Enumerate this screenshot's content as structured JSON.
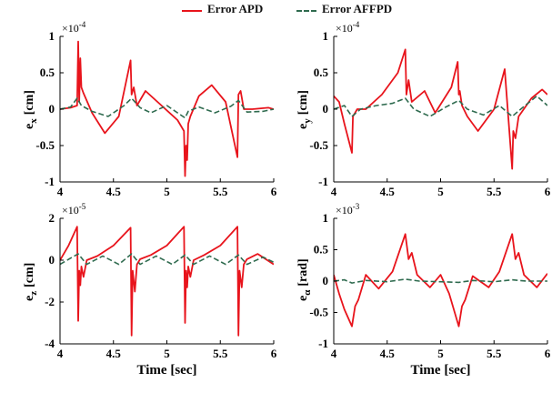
{
  "legend": {
    "apd_label": "Error APD",
    "affpd_label": "Error AFFPD"
  },
  "colors": {
    "apd": "#e8141c",
    "affpd": "#2f6b4f",
    "axis": "#000000"
  },
  "chart_data": [
    {
      "type": "line",
      "id": "ex",
      "ylabel": "e",
      "ylabel_sub": "x",
      "ylabel_unit": "[cm]",
      "exponent": "×10",
      "exponent_power": "-4",
      "xlabel": "",
      "xlim": [
        4,
        6
      ],
      "ylim": [
        -1,
        1
      ],
      "xticks": [
        4,
        4.5,
        5,
        5.5,
        6
      ],
      "xtick_labels": [
        "4",
        "4.5",
        "5",
        "5.5",
        "6"
      ],
      "yticks": [
        1,
        0.5,
        0,
        -0.5,
        -1
      ],
      "ytick_labels": [
        "1",
        "0.5",
        "0",
        "-0.5",
        "-1"
      ],
      "series": [
        {
          "name": "Error APD",
          "x": [
            4,
            4.1,
            4.16,
            4.17,
            4.18,
            4.19,
            4.2,
            4.22,
            4.3,
            4.42,
            4.55,
            4.66,
            4.67,
            4.69,
            4.72,
            4.8,
            4.95,
            5.1,
            5.16,
            5.17,
            5.18,
            5.19,
            5.2,
            5.22,
            5.3,
            5.42,
            5.55,
            5.66,
            5.67,
            5.69,
            5.72,
            5.8,
            5.95,
            6
          ],
          "y": [
            0,
            0.02,
            0.05,
            0.93,
            0.1,
            0.7,
            0.3,
            0.22,
            -0.05,
            -0.33,
            -0.1,
            0.67,
            0.2,
            0.3,
            0.05,
            0.25,
            0.05,
            -0.15,
            -0.3,
            -0.92,
            -0.5,
            -0.7,
            -0.2,
            -0.1,
            0.18,
            0.33,
            0.1,
            -0.66,
            0.2,
            0.25,
            0,
            0,
            0.02,
            0
          ]
        },
        {
          "name": "Error AFFPD",
          "x": [
            4,
            4.1,
            4.16,
            4.2,
            4.3,
            4.45,
            4.6,
            4.67,
            4.75,
            4.85,
            5,
            5.1,
            5.17,
            5.2,
            5.3,
            5.45,
            5.6,
            5.67,
            5.75,
            5.9,
            6
          ],
          "y": [
            0,
            0.03,
            0.15,
            0.05,
            -0.03,
            -0.1,
            0.05,
            0.15,
            0.02,
            -0.05,
            0.05,
            -0.05,
            -0.12,
            -0.03,
            0.03,
            -0.05,
            0.04,
            0.12,
            -0.04,
            -0.03,
            0
          ]
        }
      ]
    },
    {
      "type": "line",
      "id": "ey",
      "ylabel": "e",
      "ylabel_sub": "y",
      "ylabel_unit": "[cm]",
      "exponent": "×10",
      "exponent_power": "-4",
      "xlabel": "",
      "xlim": [
        4,
        6
      ],
      "ylim": [
        -1,
        1
      ],
      "xticks": [
        4,
        4.5,
        5,
        5.5,
        6
      ],
      "xtick_labels": [
        "4",
        "4.5",
        "5",
        "5.5",
        "6"
      ],
      "yticks": [
        1,
        0.5,
        0,
        -0.5,
        -1
      ],
      "ytick_labels": [
        "1",
        "0.5",
        "0",
        "-0.5",
        "-1"
      ],
      "series": [
        {
          "name": "Error APD",
          "x": [
            4,
            4.05,
            4.1,
            4.17,
            4.18,
            4.2,
            4.22,
            4.3,
            4.45,
            4.6,
            4.67,
            4.68,
            4.7,
            4.73,
            4.85,
            4.95,
            5.1,
            5.16,
            5.17,
            5.18,
            5.2,
            5.25,
            5.35,
            5.5,
            5.6,
            5.67,
            5.68,
            5.7,
            5.73,
            5.85,
            5.95,
            6
          ],
          "y": [
            0.18,
            0.1,
            -0.2,
            -0.6,
            -0.1,
            -0.05,
            0,
            0,
            0.2,
            0.5,
            0.82,
            0.2,
            0.4,
            0.1,
            0.25,
            -0.05,
            0.3,
            0.65,
            0.2,
            0.25,
            0.05,
            -0.1,
            -0.3,
            0,
            0.55,
            -0.82,
            -0.3,
            -0.4,
            -0.1,
            0.15,
            0.27,
            0.2
          ]
        },
        {
          "name": "Error AFFPD",
          "x": [
            4,
            4.1,
            4.17,
            4.25,
            4.4,
            4.55,
            4.67,
            4.75,
            4.9,
            5.05,
            5.17,
            5.25,
            5.4,
            5.55,
            5.67,
            5.75,
            5.9,
            6
          ],
          "y": [
            0,
            0.05,
            -0.1,
            0,
            0.05,
            0.08,
            0.15,
            0,
            -0.1,
            0.03,
            0.12,
            0,
            -0.08,
            0.05,
            -0.1,
            0,
            0.18,
            0.05
          ]
        }
      ]
    },
    {
      "type": "line",
      "id": "ez",
      "ylabel": "e",
      "ylabel_sub": "z",
      "ylabel_unit": "[cm]",
      "exponent": "×10",
      "exponent_power": "-5",
      "xlabel": "Time [sec]",
      "xlim": [
        4,
        6
      ],
      "ylim": [
        -4,
        2
      ],
      "xticks": [
        4,
        4.5,
        5,
        5.5,
        6
      ],
      "xtick_labels": [
        "4",
        "4.5",
        "5",
        "5.5",
        "6"
      ],
      "yticks": [
        2,
        0,
        -2,
        -4
      ],
      "ytick_labels": [
        "2",
        "0",
        "-2",
        "-4"
      ],
      "series": [
        {
          "name": "Error APD",
          "x": [
            4,
            4.08,
            4.16,
            4.17,
            4.18,
            4.19,
            4.2,
            4.22,
            4.25,
            4.35,
            4.5,
            4.66,
            4.67,
            4.68,
            4.7,
            4.72,
            4.75,
            4.85,
            5,
            5.16,
            5.17,
            5.18,
            5.19,
            5.2,
            5.22,
            5.25,
            5.35,
            5.5,
            5.66,
            5.67,
            5.68,
            5.7,
            5.72,
            5.75,
            5.85,
            6
          ],
          "y": [
            0,
            0.7,
            1.6,
            -2.9,
            -0.5,
            -1.2,
            -0.3,
            -0.8,
            0,
            0.2,
            0.7,
            1.55,
            -3.6,
            -0.5,
            -1.5,
            -0.2,
            0.05,
            0.25,
            0.7,
            1.6,
            -3.0,
            -0.5,
            -1.3,
            -0.3,
            -0.8,
            0,
            0.25,
            0.7,
            1.6,
            -3.6,
            -0.5,
            -1.3,
            -0.2,
            0.05,
            0.3,
            -0.2
          ]
        },
        {
          "name": "Error AFFPD",
          "x": [
            4,
            4.1,
            4.17,
            4.25,
            4.4,
            4.55,
            4.67,
            4.75,
            4.9,
            5.05,
            5.17,
            5.25,
            5.4,
            5.55,
            5.67,
            5.75,
            5.9,
            6
          ],
          "y": [
            -0.2,
            0.1,
            0.3,
            -0.2,
            0.2,
            -0.2,
            0.3,
            -0.2,
            0.2,
            -0.2,
            0.25,
            -0.2,
            0.2,
            -0.2,
            0.25,
            -0.2,
            0.15,
            -0.1
          ]
        }
      ]
    },
    {
      "type": "line",
      "id": "ealpha",
      "ylabel": "e",
      "ylabel_sub": "α",
      "ylabel_unit": "[rad]",
      "exponent": "×10",
      "exponent_power": "-3",
      "xlabel": "Time [sec]",
      "xlim": [
        4,
        6
      ],
      "ylim": [
        -1,
        1
      ],
      "xticks": [
        4,
        4.5,
        5,
        5.5,
        6
      ],
      "xtick_labels": [
        "4",
        "4.5",
        "5",
        "5.5",
        "6"
      ],
      "yticks": [
        1,
        0.5,
        0,
        -0.5,
        -1
      ],
      "ytick_labels": [
        "1",
        "0.5",
        "0",
        "-0.5",
        "-1"
      ],
      "series": [
        {
          "name": "Error APD",
          "x": [
            4,
            4.05,
            4.1,
            4.17,
            4.2,
            4.23,
            4.3,
            4.42,
            4.55,
            4.67,
            4.7,
            4.73,
            4.78,
            4.9,
            5,
            5.08,
            5.17,
            5.2,
            5.23,
            5.3,
            5.45,
            5.55,
            5.67,
            5.7,
            5.73,
            5.78,
            5.9,
            6
          ],
          "y": [
            0.1,
            -0.2,
            -0.45,
            -0.72,
            -0.4,
            -0.3,
            0.1,
            -0.12,
            0.15,
            0.75,
            0.35,
            0.45,
            0.1,
            -0.1,
            0.1,
            -0.2,
            -0.72,
            -0.4,
            -0.3,
            0.08,
            -0.1,
            0.15,
            0.75,
            0.35,
            0.45,
            0.1,
            -0.1,
            0.12
          ]
        },
        {
          "name": "Error AFFPD",
          "x": [
            4,
            4.1,
            4.17,
            4.3,
            4.5,
            4.67,
            4.8,
            5,
            5.17,
            5.3,
            5.5,
            5.67,
            5.8,
            6
          ],
          "y": [
            0,
            0.02,
            -0.03,
            0.01,
            -0.01,
            0.03,
            0,
            -0.01,
            -0.02,
            0.01,
            -0.01,
            0.02,
            0,
            0
          ]
        }
      ]
    }
  ]
}
